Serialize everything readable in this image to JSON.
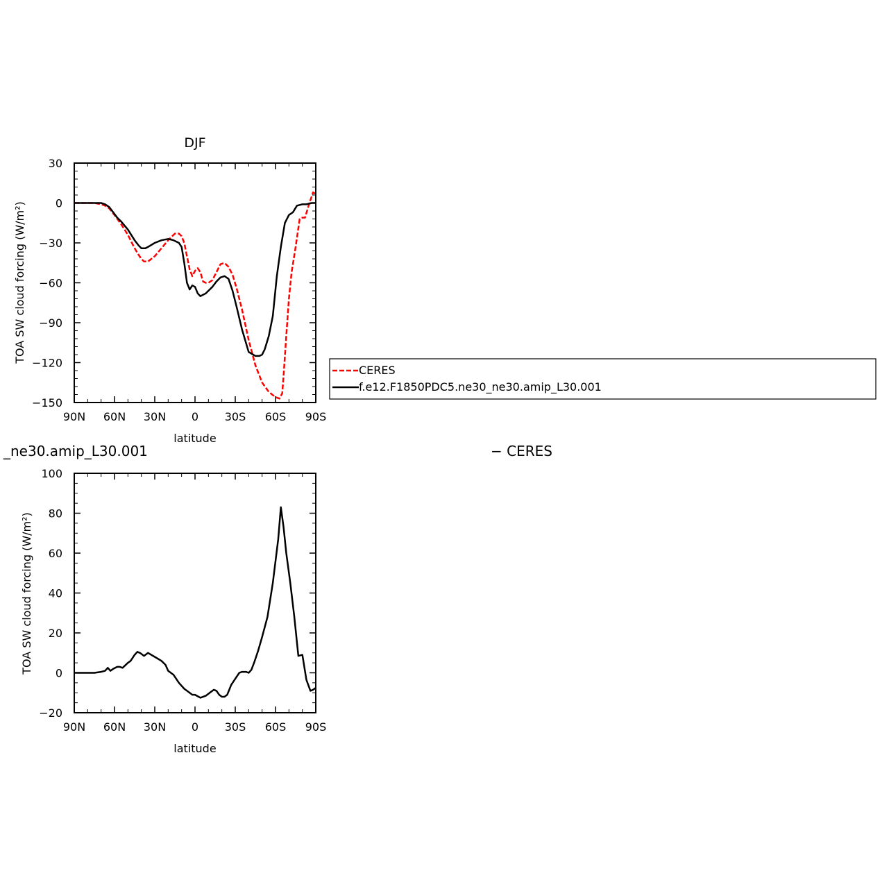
{
  "chart_data": [
    {
      "type": "line",
      "title": "DJF",
      "xlabel": "latitude",
      "ylabel": "TOA SW cloud forcing (W/m²)",
      "xlim": [
        90,
        -90
      ],
      "ylim": [
        -150,
        30
      ],
      "x_ticks": [
        90,
        60,
        30,
        0,
        -30,
        -60,
        -90
      ],
      "x_tick_labels": [
        "90N",
        "60N",
        "30N",
        "0",
        "30S",
        "60S",
        "90S"
      ],
      "y_ticks": [
        30,
        0,
        -30,
        -60,
        -90,
        -120,
        -150
      ],
      "y_tick_labels": [
        "30",
        "0",
        "−30",
        "−60",
        "−90",
        "−120",
        "−150"
      ],
      "legend": {
        "placement": "right",
        "entries": [
          "CERES",
          "f.e12.F1850PDC5.ne30_ne30.amip_L30.001"
        ]
      },
      "series": [
        {
          "name": "CERES",
          "color": "#ff0000",
          "dash": "dashed",
          "x": [
            90,
            80,
            75,
            70,
            67,
            64,
            60,
            55,
            50,
            45,
            42,
            40,
            38,
            35,
            30,
            25,
            20,
            17,
            15,
            12,
            10,
            8,
            6,
            4,
            2,
            0,
            -2,
            -4,
            -6,
            -8,
            -10,
            -13,
            -16,
            -19,
            -22,
            -25,
            -28,
            -31,
            -35,
            -40,
            -45,
            -50,
            -55,
            -60,
            -63,
            -65,
            -66,
            -68,
            -70,
            -72,
            -75,
            -78,
            -80,
            -82,
            -85,
            -88,
            -90
          ],
          "y": [
            0,
            0,
            0,
            -1,
            -2,
            -4,
            -9,
            -16,
            -24,
            -34,
            -39,
            -42,
            -44,
            -44,
            -40,
            -34,
            -28,
            -25,
            -23,
            -23,
            -25,
            -30,
            -40,
            -50,
            -55,
            -51,
            -49,
            -52,
            -59,
            -60,
            -60,
            -58,
            -52,
            -46,
            -45,
            -48,
            -54,
            -64,
            -80,
            -103,
            -122,
            -135,
            -142,
            -146,
            -147,
            -143,
            -130,
            -100,
            -72,
            -52,
            -33,
            -12,
            -11,
            -11,
            -1,
            8,
            7
          ]
        },
        {
          "name": "f.e12.F1850PDC5.ne30_ne30.amip_L30.001",
          "color": "#000000",
          "dash": "solid",
          "x": [
            90,
            80,
            75,
            70,
            67,
            64,
            61,
            58,
            55,
            50,
            45,
            42,
            40,
            37,
            35,
            30,
            25,
            20,
            16,
            12,
            10,
            8,
            6,
            4,
            2,
            0,
            -2,
            -4,
            -6,
            -8,
            -10,
            -13,
            -16,
            -19,
            -22,
            -25,
            -28,
            -31,
            -35,
            -40,
            -45,
            -48,
            -50,
            -52,
            -55,
            -58,
            -61,
            -64,
            -67,
            -70,
            -73,
            -76,
            -80,
            -83,
            -87,
            -90
          ],
          "y": [
            0,
            0,
            0,
            0,
            -1,
            -3,
            -7,
            -11,
            -14,
            -20,
            -28,
            -32,
            -34,
            -34,
            -33,
            -30,
            -28,
            -27,
            -28,
            -30,
            -33,
            -45,
            -60,
            -65,
            -62,
            -63,
            -68,
            -70,
            -69,
            -68,
            -66,
            -63,
            -59,
            -56,
            -55,
            -57,
            -66,
            -78,
            -95,
            -112,
            -115,
            -115,
            -114,
            -110,
            -100,
            -85,
            -55,
            -33,
            -15,
            -9,
            -7,
            -2,
            -1,
            -1,
            0,
            0
          ]
        }
      ]
    },
    {
      "type": "line",
      "title_left": "_ne30.amip_L30.001",
      "title_right": "− CERES",
      "xlabel": "latitude",
      "ylabel": "TOA SW cloud forcing (W/m²)",
      "xlim": [
        90,
        -90
      ],
      "ylim": [
        -20,
        100
      ],
      "x_ticks": [
        90,
        60,
        30,
        0,
        -30,
        -60,
        -90
      ],
      "x_tick_labels": [
        "90N",
        "60N",
        "30N",
        "0",
        "30S",
        "60S",
        "90S"
      ],
      "y_ticks": [
        100,
        80,
        60,
        40,
        20,
        0,
        -20
      ],
      "y_tick_labels": [
        "100",
        "80",
        "60",
        "40",
        "20",
        "0",
        "−20"
      ],
      "series": [
        {
          "color": "#000000",
          "dash": "solid",
          "x": [
            90,
            80,
            75,
            70,
            67,
            65,
            63,
            61,
            58,
            56,
            54,
            50,
            48,
            45,
            43,
            41,
            38,
            35,
            30,
            25,
            22,
            20,
            16,
            12,
            8,
            4,
            2,
            0,
            -4,
            -8,
            -12,
            -14,
            -16,
            -18,
            -20,
            -22,
            -24,
            -27,
            -30,
            -33,
            -35,
            -38,
            -40,
            -42,
            -44,
            -47,
            -50,
            -54,
            -58,
            -62,
            -64,
            -66,
            -68,
            -71,
            -74,
            -77,
            -80,
            -83,
            -86,
            -88,
            -90
          ],
          "y": [
            0,
            0,
            0,
            0.5,
            1,
            2.5,
            1,
            2,
            3,
            3,
            2.5,
            5,
            6,
            9,
            10.5,
            10,
            8.5,
            10,
            8,
            6,
            4,
            1,
            -1,
            -5,
            -8,
            -10,
            -11,
            -11,
            -12.5,
            -11.5,
            -9.5,
            -8.5,
            -9,
            -11,
            -12,
            -12,
            -11,
            -6,
            -3,
            0,
            0.5,
            0.5,
            0,
            1.5,
            5,
            11,
            18,
            28,
            45,
            67,
            83,
            73,
            60,
            45,
            28,
            8.5,
            9,
            -3.5,
            -9,
            -8.5,
            -7.5
          ]
        }
      ]
    }
  ]
}
